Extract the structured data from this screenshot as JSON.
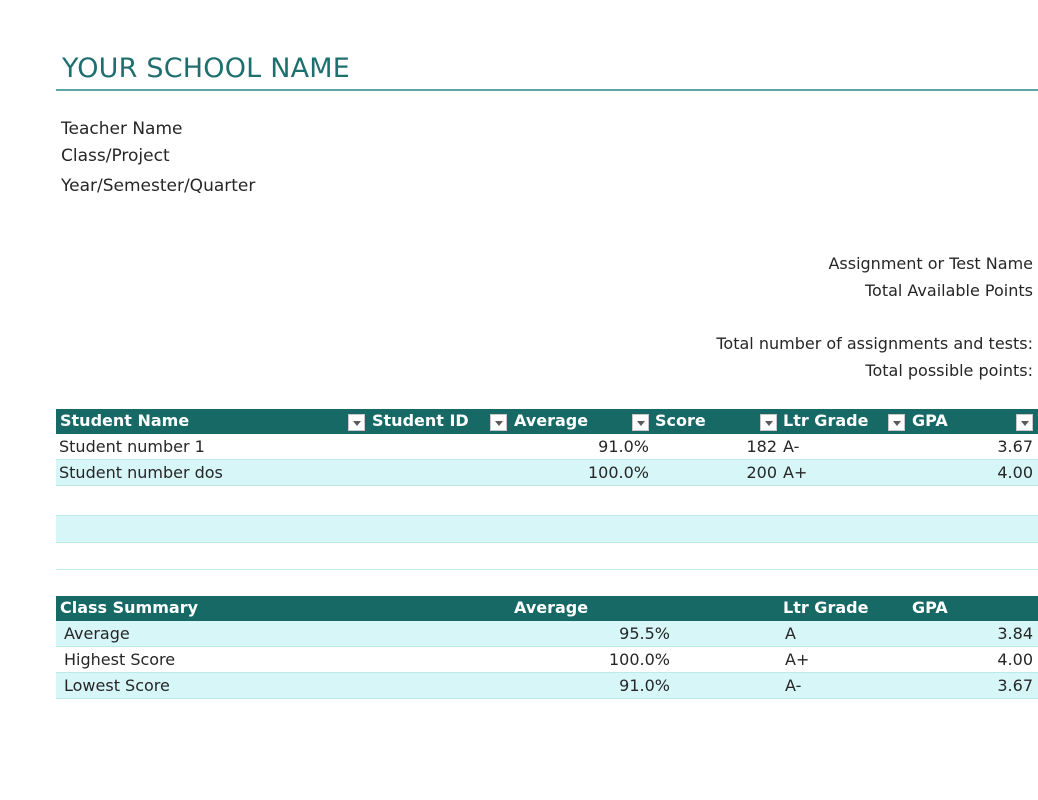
{
  "header": {
    "school_name": "YOUR SCHOOL NAME",
    "teacher_label": "Teacher Name",
    "class_label": "Class/Project",
    "term_label": "Year/Semester/Quarter"
  },
  "assignment_info": {
    "assignment_label": "Assignment or Test Name",
    "total_points_label": "Total Available Points",
    "num_assignments_label": "Total number of assignments and tests:",
    "possible_points_label": "Total possible points:"
  },
  "student_table": {
    "columns": [
      "Student Name",
      "Student ID",
      "Average",
      "Score",
      "Ltr Grade",
      "GPA"
    ],
    "rows": [
      {
        "name": "Student number 1",
        "id": "",
        "average": "91.0%",
        "score": "182",
        "grade": "A-",
        "gpa": "3.67"
      },
      {
        "name": "Student number dos",
        "id": "",
        "average": "100.0%",
        "score": "200",
        "grade": "A+",
        "gpa": "4.00"
      }
    ]
  },
  "class_summary": {
    "columns": [
      "Class Summary",
      "Average",
      "Ltr Grade",
      "GPA"
    ],
    "rows": [
      {
        "label": "Average",
        "average": "95.5%",
        "grade": "A",
        "gpa": "3.84"
      },
      {
        "label": "Highest Score",
        "average": "100.0%",
        "grade": "A+",
        "gpa": "4.00"
      },
      {
        "label": "Lowest Score",
        "average": "91.0%",
        "grade": "A-",
        "gpa": "3.67"
      }
    ]
  },
  "colors": {
    "header_fill": "#176966",
    "title_color": "#1f6f6f",
    "band_fill": "#d6f6f8"
  }
}
